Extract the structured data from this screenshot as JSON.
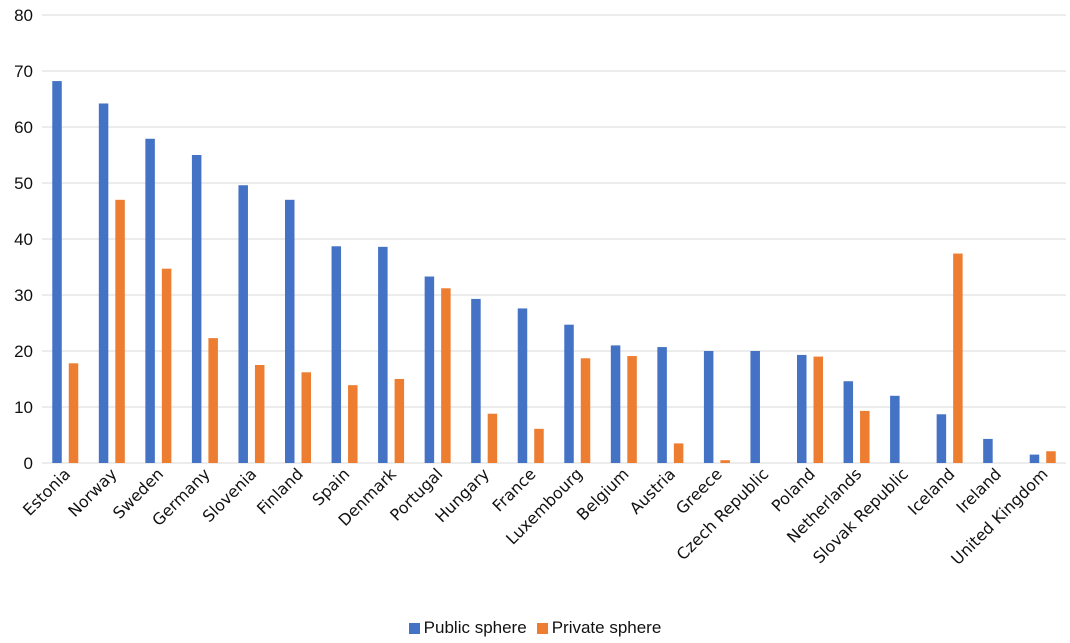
{
  "chart_data": {
    "type": "bar",
    "title": "",
    "xlabel": "",
    "ylabel": "",
    "ylim": [
      0,
      80
    ],
    "yticks": [
      0,
      10,
      20,
      30,
      40,
      50,
      60,
      70,
      80
    ],
    "grid": true,
    "legend_position": "bottom",
    "categories": [
      "Estonia",
      "Norway",
      "Sweden",
      "Germany",
      "Slovenia",
      "Finland",
      "Spain",
      "Denmark",
      "Portugal",
      "Hungary",
      "France",
      "Luxembourg",
      "Belgium",
      "Austria",
      "Greece",
      "Czech Republic",
      "Poland",
      "Netherlands",
      "Slovak Republic",
      "Iceland",
      "Ireland",
      "United Kingdom"
    ],
    "series": [
      {
        "name": "Public sphere",
        "color": "#4472C4",
        "values": [
          68.2,
          64.2,
          57.9,
          55.0,
          49.6,
          47.0,
          38.7,
          38.6,
          33.3,
          29.3,
          27.6,
          24.7,
          21.0,
          20.7,
          20.0,
          20.0,
          19.3,
          14.6,
          12.0,
          8.7,
          4.3,
          1.5
        ]
      },
      {
        "name": "Private sphere",
        "color": "#ED7D31",
        "values": [
          17.8,
          47.0,
          34.7,
          22.3,
          17.5,
          16.2,
          13.9,
          15.0,
          31.2,
          8.8,
          6.1,
          18.7,
          19.1,
          3.5,
          0.5,
          0,
          19.0,
          9.3,
          0,
          37.4,
          0,
          2.1
        ]
      }
    ]
  }
}
